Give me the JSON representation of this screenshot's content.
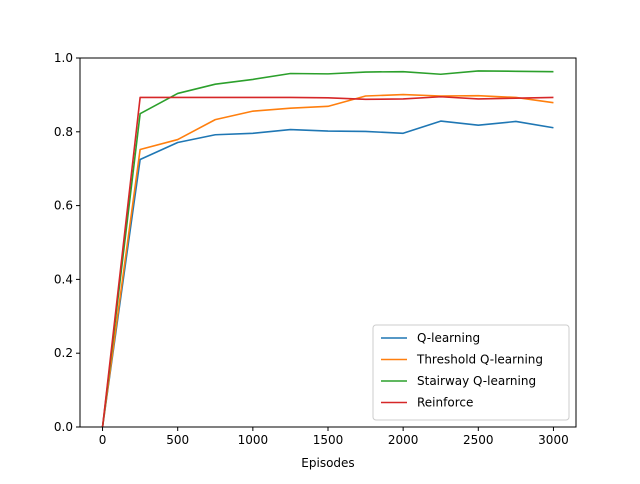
{
  "chart_data": {
    "type": "line",
    "title": "",
    "xlabel": "Episodes",
    "ylabel": "",
    "xlim": [
      -150,
      3150
    ],
    "ylim": [
      0.0,
      1.0
    ],
    "xticks": [
      0,
      500,
      1000,
      1500,
      2000,
      2500,
      3000
    ],
    "xtick_labels": [
      "0",
      "500",
      "1000",
      "1500",
      "2000",
      "2500",
      "3000"
    ],
    "yticks": [
      0.0,
      0.2,
      0.4,
      0.6,
      0.8,
      1.0
    ],
    "ytick_labels": [
      "0.0",
      "0.2",
      "0.4",
      "0.6",
      "0.8",
      "1.0"
    ],
    "grid": false,
    "legend_position": "lower-right",
    "x": [
      0,
      250,
      500,
      750,
      1000,
      1250,
      1500,
      1750,
      2000,
      2250,
      2500,
      2750,
      3000
    ],
    "series": [
      {
        "name": "Q-learning",
        "color": "#1f77b4",
        "values": [
          0.0,
          0.725,
          0.771,
          0.792,
          0.796,
          0.806,
          0.802,
          0.801,
          0.796,
          0.829,
          0.818,
          0.828,
          0.811
        ]
      },
      {
        "name": "Threshold Q-learning",
        "color": "#ff7f0e",
        "values": [
          0.0,
          0.752,
          0.779,
          0.833,
          0.856,
          0.864,
          0.869,
          0.897,
          0.901,
          0.897,
          0.898,
          0.893,
          0.879
        ]
      },
      {
        "name": "Stairway Q-learning",
        "color": "#2ca02c",
        "values": [
          0.0,
          0.849,
          0.904,
          0.929,
          0.942,
          0.958,
          0.957,
          0.962,
          0.963,
          0.956,
          0.965,
          0.964,
          0.963
        ]
      },
      {
        "name": "Reinforce",
        "color": "#d62728",
        "values": [
          0.0,
          0.893,
          0.893,
          0.893,
          0.893,
          0.893,
          0.892,
          0.888,
          0.889,
          0.895,
          0.889,
          0.891,
          0.893
        ]
      }
    ]
  }
}
